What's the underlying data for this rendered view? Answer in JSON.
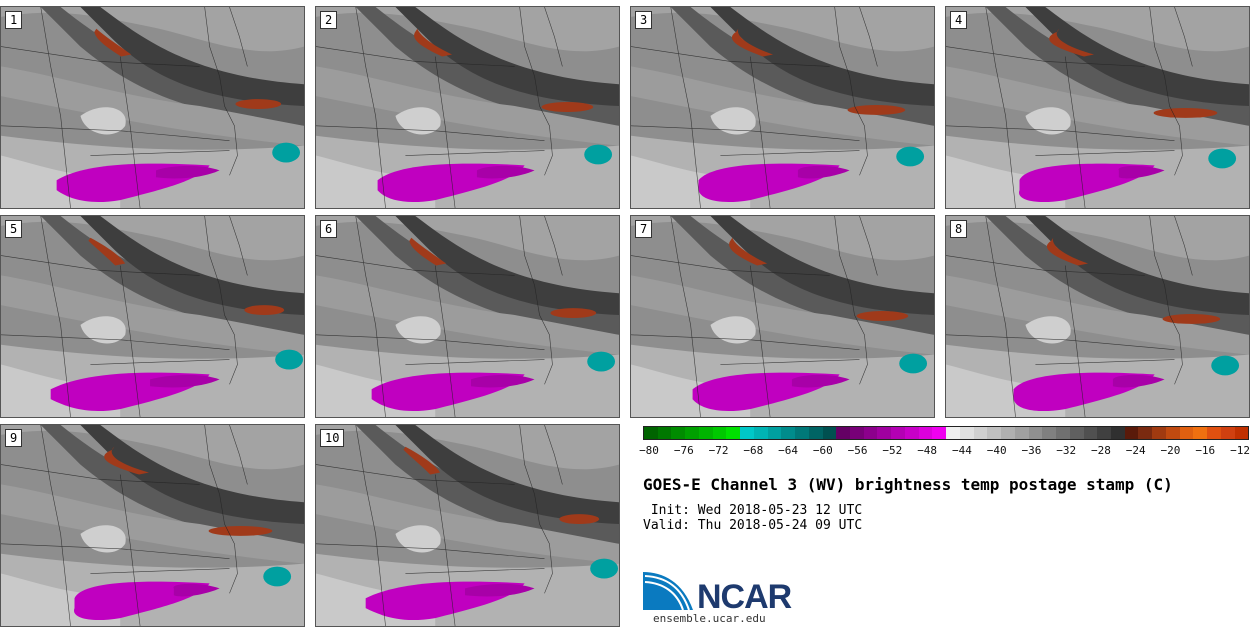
{
  "panels": [
    {
      "label": "1"
    },
    {
      "label": "2"
    },
    {
      "label": "3"
    },
    {
      "label": "4"
    },
    {
      "label": "5"
    },
    {
      "label": "6"
    },
    {
      "label": "7"
    },
    {
      "label": "8"
    },
    {
      "label": "9"
    },
    {
      "label": "10"
    }
  ],
  "colorbar": {
    "colors": [
      "#006400",
      "#007800",
      "#008c00",
      "#00a000",
      "#00b400",
      "#00c800",
      "#00e000",
      "#00c8c8",
      "#00b4b4",
      "#00a0a0",
      "#008c8c",
      "#007878",
      "#006464",
      "#005050",
      "#640064",
      "#780078",
      "#8c008c",
      "#a000a0",
      "#b400b4",
      "#c800c8",
      "#dc00dc",
      "#f000f0",
      "#f0f0f0",
      "#e0e0e0",
      "#d0d0d0",
      "#c0c0c0",
      "#b0b0b0",
      "#a0a0a0",
      "#909090",
      "#808080",
      "#707070",
      "#606060",
      "#505050",
      "#404040",
      "#303030",
      "#5a1a0a",
      "#7a2a10",
      "#a03a10",
      "#c04a10",
      "#e06010",
      "#f07010",
      "#e05010",
      "#d04010",
      "#c03000"
    ],
    "tick_labels": [
      "−80",
      "−76",
      "−72",
      "−68",
      "−64",
      "−60",
      "−56",
      "−52",
      "−48",
      "−44",
      "−40",
      "−36",
      "−32",
      "−28",
      "−24",
      "−20",
      "−16",
      "−12"
    ]
  },
  "title": "GOES-E Channel 3 (WV) brightness temp postage stamp (C)",
  "init_line": " Init: Wed 2018-05-23 12 UTC",
  "valid_line": "Valid: Thu 2018-05-24 09 UTC",
  "logo_text": "NCAR",
  "site": "ensemble.ucar.edu"
}
